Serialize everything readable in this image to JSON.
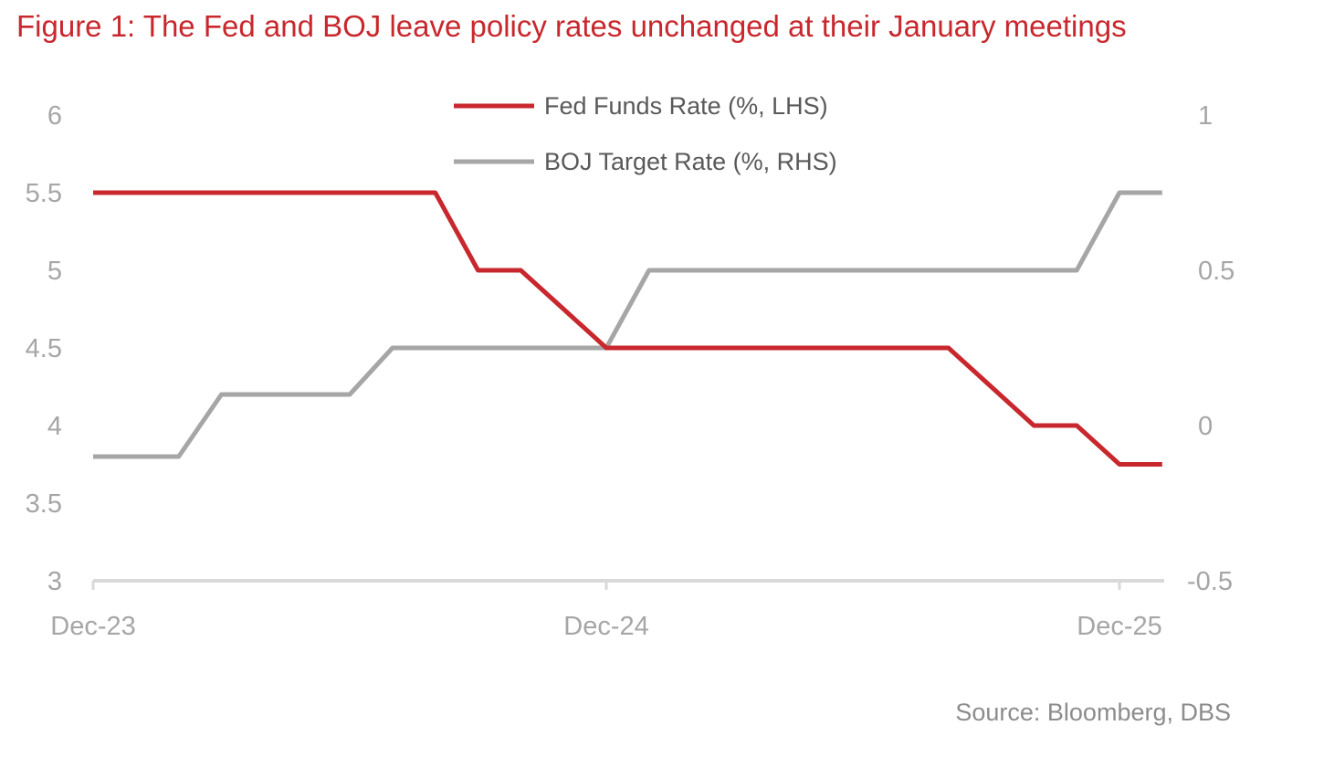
{
  "chart_data": {
    "type": "line",
    "title": "Figure 1: The Fed and BOJ leave policy rates unchanged at their January meetings",
    "source": "Source: Bloomberg, DBS",
    "x": [
      "Dec-23",
      "Jan-24",
      "Feb-24",
      "Mar-24",
      "Apr-24",
      "May-24",
      "Jun-24",
      "Jul-24",
      "Aug-24",
      "Sep-24",
      "Oct-24",
      "Nov-24",
      "Dec-24",
      "Jan-25",
      "Feb-25",
      "Mar-25",
      "Apr-25",
      "May-25",
      "Jun-25",
      "Jul-25",
      "Aug-25",
      "Sep-25",
      "Oct-25",
      "Nov-25",
      "Dec-25",
      "Jan-26"
    ],
    "x_tick_labels": [
      "Dec-23",
      "Dec-24",
      "Dec-25"
    ],
    "left_axis": {
      "ylim": [
        3,
        6
      ],
      "ticks": [
        "3",
        "3.5",
        "4",
        "4.5",
        "5",
        "5.5",
        "6"
      ]
    },
    "right_axis": {
      "ylim": [
        -0.5,
        1
      ],
      "ticks": [
        "-0.5",
        "0",
        "0.5",
        "1"
      ]
    },
    "grid": false,
    "legend_position": "top-center",
    "series": [
      {
        "name": "Fed Funds Rate (%, LHS)",
        "axis": "left",
        "color": "#c8282d",
        "values": [
          5.5,
          5.5,
          5.5,
          5.5,
          5.5,
          5.5,
          5.5,
          5.5,
          5.5,
          5.0,
          5.0,
          4.75,
          4.5,
          4.5,
          4.5,
          4.5,
          4.5,
          4.5,
          4.5,
          4.5,
          4.5,
          4.25,
          4.0,
          4.0,
          3.75,
          3.75
        ]
      },
      {
        "name": "BOJ Target Rate (%, RHS)",
        "axis": "right",
        "color": "#a6a6a6",
        "values": [
          -0.1,
          -0.1,
          -0.1,
          0.1,
          0.1,
          0.1,
          0.1,
          0.25,
          0.25,
          0.25,
          0.25,
          0.25,
          0.25,
          0.5,
          0.5,
          0.5,
          0.5,
          0.5,
          0.5,
          0.5,
          0.5,
          0.5,
          0.5,
          0.5,
          0.75,
          0.75
        ]
      }
    ]
  }
}
